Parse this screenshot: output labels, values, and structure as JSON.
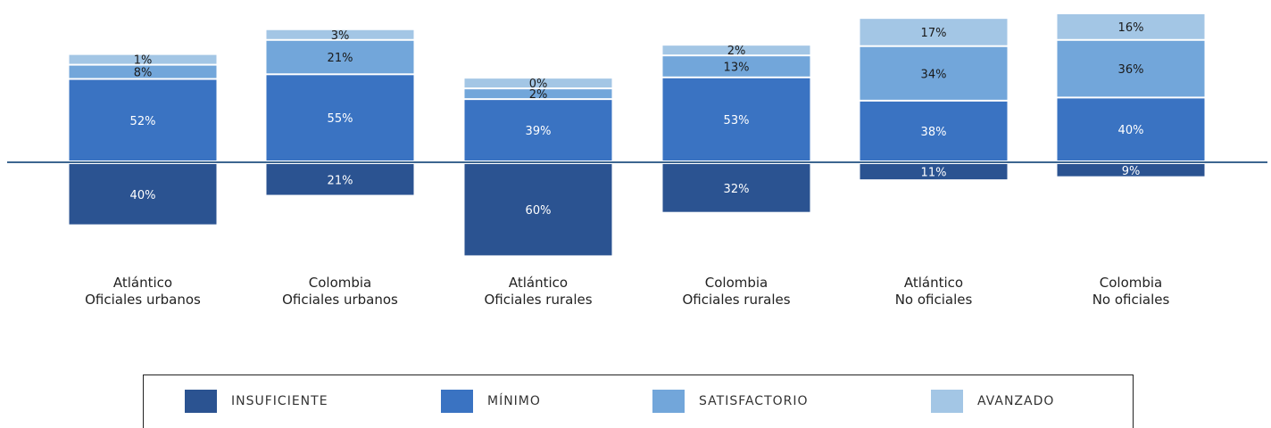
{
  "chart_data": {
    "type": "bar",
    "stacked": true,
    "baseline": "diverging",
    "categories": [
      [
        "Atlántico",
        "Oficiales urbanos"
      ],
      [
        "Colombia",
        "Oficiales urbanos"
      ],
      [
        "Atlántico",
        "Oficiales rurales"
      ],
      [
        "Colombia",
        "Oficiales rurales"
      ],
      [
        "Atlántico",
        "No oficiales"
      ],
      [
        "Colombia",
        "No oficiales"
      ]
    ],
    "series": [
      {
        "name": "INSUFICIENTE",
        "values": [
          40,
          21,
          60,
          32,
          11,
          9
        ],
        "color": "#2b5391",
        "labels": [
          "40%",
          "21%",
          "60%",
          "32%",
          "11%",
          "9%"
        ]
      },
      {
        "name": "MÍNIMO",
        "values": [
          52,
          55,
          39,
          53,
          38,
          40
        ],
        "color": "#3a73c2",
        "labels": [
          "52%",
          "55%",
          "39%",
          "53%",
          "38%",
          "40%"
        ]
      },
      {
        "name": "SATISFACTORIO",
        "values": [
          8,
          21,
          2,
          13,
          34,
          36
        ],
        "color": "#72a6da",
        "labels": [
          "8%",
          "21%",
          "2%",
          "13%",
          "34%",
          "36%"
        ]
      },
      {
        "name": "AVANZADO",
        "values": [
          1,
          3,
          0,
          2,
          17,
          16
        ],
        "color": "#a3c6e5",
        "labels": [
          "1%",
          "3%",
          "0%",
          "2%",
          "17%",
          "16%"
        ]
      }
    ],
    "legend": "bottom"
  }
}
